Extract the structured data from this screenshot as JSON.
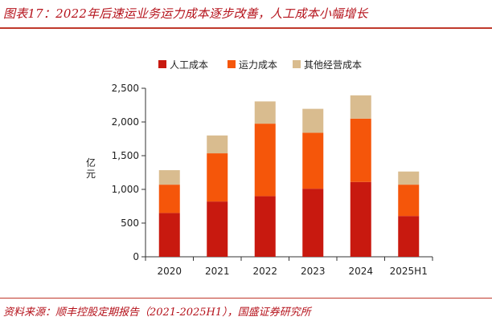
{
  "header": {
    "title": "图表17：2022年后速运业务运力成本逐步改善，人工成本小幅增长"
  },
  "footer": {
    "source": "资料来源：顺丰控股定期报告（2021-2025H1），国盛证券研究所"
  },
  "colors": {
    "accent": "#b5121b",
    "labor": "#c8190f",
    "capacity": "#f5560a",
    "other": "#d9bc8f"
  },
  "chart_data": {
    "type": "bar",
    "stacked": true,
    "categories": [
      "2020",
      "2021",
      "2022",
      "2023",
      "2024",
      "2025H1"
    ],
    "series": [
      {
        "name": "人工成本",
        "color": "#c8190f",
        "values": [
          650,
          820,
          900,
          1010,
          1110,
          605
        ]
      },
      {
        "name": "运力成本",
        "color": "#f5560a",
        "values": [
          420,
          715,
          1075,
          830,
          940,
          465
        ]
      },
      {
        "name": "其他经营成本",
        "color": "#d9bc8f",
        "values": [
          215,
          265,
          330,
          355,
          345,
          195
        ]
      }
    ],
    "ylabel": "亿元",
    "ylim": [
      0,
      2500
    ],
    "yticks": [
      0,
      500,
      1000,
      1500,
      2000,
      2500
    ],
    "ytick_labels": [
      "0",
      "500",
      "1,000",
      "1,500",
      "2,000",
      "2,500"
    ],
    "legend_position": "top",
    "grid": false
  }
}
